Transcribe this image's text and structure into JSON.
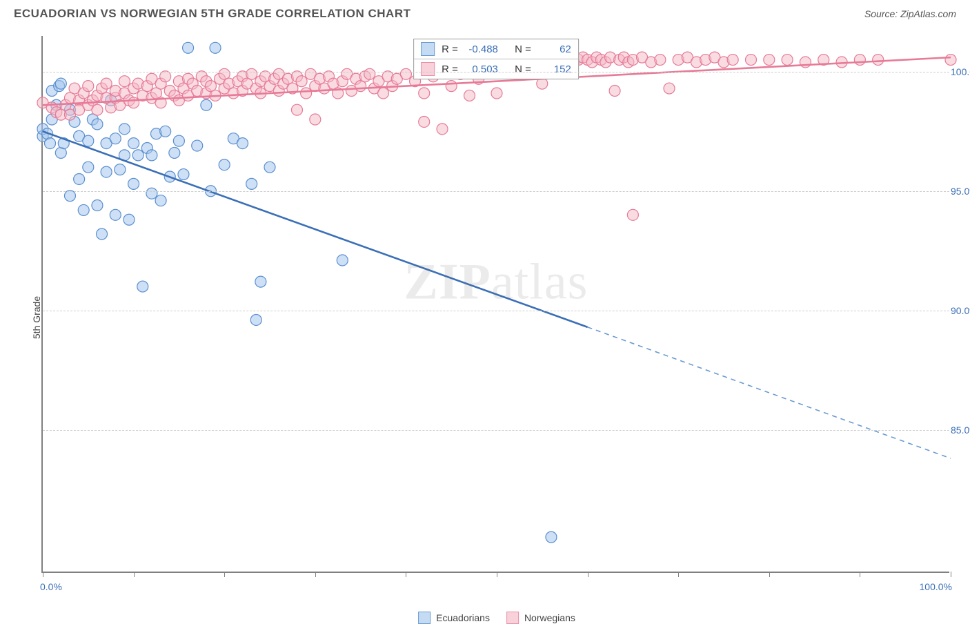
{
  "header": {
    "title": "ECUADORIAN VS NORWEGIAN 5TH GRADE CORRELATION CHART",
    "source_prefix": "Source: ",
    "source_name": "ZipAtlas.com"
  },
  "watermark": {
    "zip": "ZIP",
    "atlas": "atlas"
  },
  "chart": {
    "type": "scatter",
    "background_color": "#ffffff",
    "grid_color": "#cccccc",
    "axis_color": "#808080",
    "tick_label_color": "#3b6fb6",
    "ylabel": "5th Grade",
    "ylabel_fontsize": 14,
    "xlim": [
      0,
      100
    ],
    "ylim": [
      79,
      101.5
    ],
    "yticks": [
      85,
      90,
      95,
      100
    ],
    "ytick_labels": [
      "85.0%",
      "90.0%",
      "95.0%",
      "100.0%"
    ],
    "xticks": [
      0,
      10,
      20,
      30,
      40,
      50,
      60,
      70,
      80,
      90,
      100
    ],
    "xaxis_end_labels": {
      "left": "0.0%",
      "right": "100.0%"
    },
    "marker_radius": 8,
    "marker_stroke_width": 1.2,
    "trend_line_width": 2.6,
    "series": [
      {
        "name": "Ecuadorians",
        "fill_color": "#a6c7ec",
        "stroke_color": "#5a8fd0",
        "fill_opacity": 0.55,
        "legend_fill": "#c5dbf3",
        "legend_border": "#6a9ad2",
        "trend": {
          "solid_from": [
            0,
            97.5
          ],
          "solid_to": [
            60,
            89.3
          ],
          "dash_to": [
            100,
            83.8
          ],
          "color": "#3b6fb6",
          "dash_color": "#6a9ad2"
        },
        "points": [
          [
            0,
            97.3
          ],
          [
            0,
            97.6
          ],
          [
            0.5,
            97.4
          ],
          [
            0.8,
            97.0
          ],
          [
            1,
            98.0
          ],
          [
            1,
            99.2
          ],
          [
            1.5,
            98.6
          ],
          [
            1.8,
            99.4
          ],
          [
            2,
            96.6
          ],
          [
            2,
            99.5
          ],
          [
            2.3,
            97.0
          ],
          [
            3,
            98.4
          ],
          [
            3,
            94.8
          ],
          [
            3.5,
            97.9
          ],
          [
            4,
            97.3
          ],
          [
            4,
            95.5
          ],
          [
            4.5,
            94.2
          ],
          [
            5,
            97.1
          ],
          [
            5,
            96.0
          ],
          [
            5.5,
            98.0
          ],
          [
            6,
            94.4
          ],
          [
            6,
            97.8
          ],
          [
            6.5,
            93.2
          ],
          [
            7,
            97.0
          ],
          [
            7,
            95.8
          ],
          [
            7.5,
            98.8
          ],
          [
            8,
            97.2
          ],
          [
            8,
            94.0
          ],
          [
            8.5,
            95.9
          ],
          [
            9,
            96.5
          ],
          [
            9,
            97.6
          ],
          [
            9.5,
            93.8
          ],
          [
            10,
            97.0
          ],
          [
            10,
            95.3
          ],
          [
            10.5,
            96.5
          ],
          [
            11,
            91.0
          ],
          [
            11.5,
            96.8
          ],
          [
            12,
            96.5
          ],
          [
            12,
            94.9
          ],
          [
            12.5,
            97.4
          ],
          [
            13,
            94.6
          ],
          [
            13.5,
            97.5
          ],
          [
            14,
            95.6
          ],
          [
            14.5,
            96.6
          ],
          [
            15,
            97.1
          ],
          [
            15.5,
            95.7
          ],
          [
            16,
            101.0
          ],
          [
            17,
            96.9
          ],
          [
            18,
            98.6
          ],
          [
            18.5,
            95.0
          ],
          [
            19,
            101.0
          ],
          [
            20,
            96.1
          ],
          [
            21,
            97.2
          ],
          [
            22,
            97.0
          ],
          [
            23,
            95.3
          ],
          [
            23.5,
            89.6
          ],
          [
            24,
            91.2
          ],
          [
            25,
            96.0
          ],
          [
            33,
            92.1
          ],
          [
            56,
            80.5
          ]
        ]
      },
      {
        "name": "Norwegians",
        "fill_color": "#f4b8c6",
        "stroke_color": "#e77a97",
        "fill_opacity": 0.5,
        "legend_fill": "#f8d1db",
        "legend_border": "#e98fa8",
        "trend": {
          "solid_from": [
            0,
            98.6
          ],
          "solid_to": [
            100,
            100.6
          ],
          "dash_to": null,
          "color": "#e77a97",
          "dash_color": "#e77a97"
        },
        "points": [
          [
            0,
            98.7
          ],
          [
            1,
            98.5
          ],
          [
            1.5,
            98.3
          ],
          [
            2,
            98.2
          ],
          [
            2.5,
            98.6
          ],
          [
            3,
            98.9
          ],
          [
            3,
            98.2
          ],
          [
            3.5,
            99.3
          ],
          [
            4,
            98.8
          ],
          [
            4,
            98.4
          ],
          [
            4.5,
            99.1
          ],
          [
            5,
            98.6
          ],
          [
            5,
            99.4
          ],
          [
            5.5,
            98.8
          ],
          [
            6,
            99.0
          ],
          [
            6,
            98.4
          ],
          [
            6.5,
            99.3
          ],
          [
            7,
            98.9
          ],
          [
            7,
            99.5
          ],
          [
            7.5,
            98.5
          ],
          [
            8,
            98.9
          ],
          [
            8,
            99.2
          ],
          [
            8.5,
            98.6
          ],
          [
            9,
            99.1
          ],
          [
            9,
            99.6
          ],
          [
            9.5,
            98.8
          ],
          [
            10,
            99.3
          ],
          [
            10,
            98.7
          ],
          [
            10.5,
            99.5
          ],
          [
            11,
            99.0
          ],
          [
            11.5,
            99.4
          ],
          [
            12,
            98.9
          ],
          [
            12,
            99.7
          ],
          [
            12.5,
            99.1
          ],
          [
            13,
            99.5
          ],
          [
            13,
            98.7
          ],
          [
            13.5,
            99.8
          ],
          [
            14,
            99.2
          ],
          [
            14.5,
            99.0
          ],
          [
            15,
            99.6
          ],
          [
            15,
            98.8
          ],
          [
            15.5,
            99.3
          ],
          [
            16,
            99.7
          ],
          [
            16,
            99.0
          ],
          [
            16.5,
            99.5
          ],
          [
            17,
            99.2
          ],
          [
            17.5,
            99.8
          ],
          [
            18,
            99.1
          ],
          [
            18,
            99.6
          ],
          [
            18.5,
            99.4
          ],
          [
            19,
            99.0
          ],
          [
            19.5,
            99.7
          ],
          [
            20,
            99.3
          ],
          [
            20,
            99.9
          ],
          [
            20.5,
            99.5
          ],
          [
            21,
            99.1
          ],
          [
            21.5,
            99.6
          ],
          [
            22,
            99.8
          ],
          [
            22,
            99.2
          ],
          [
            22.5,
            99.5
          ],
          [
            23,
            99.9
          ],
          [
            23.5,
            99.3
          ],
          [
            24,
            99.6
          ],
          [
            24,
            99.1
          ],
          [
            24.5,
            99.8
          ],
          [
            25,
            99.4
          ],
          [
            25.5,
            99.7
          ],
          [
            26,
            99.2
          ],
          [
            26,
            99.9
          ],
          [
            26.5,
            99.5
          ],
          [
            27,
            99.7
          ],
          [
            27.5,
            99.3
          ],
          [
            28,
            99.8
          ],
          [
            28,
            98.4
          ],
          [
            28.5,
            99.6
          ],
          [
            29,
            99.1
          ],
          [
            29.5,
            99.9
          ],
          [
            30,
            99.4
          ],
          [
            30,
            98.0
          ],
          [
            30.5,
            99.7
          ],
          [
            31,
            99.3
          ],
          [
            31.5,
            99.8
          ],
          [
            32,
            99.5
          ],
          [
            32.5,
            99.1
          ],
          [
            33,
            99.6
          ],
          [
            33.5,
            99.9
          ],
          [
            34,
            99.2
          ],
          [
            34.5,
            99.7
          ],
          [
            35,
            99.4
          ],
          [
            35.5,
            99.8
          ],
          [
            36,
            99.9
          ],
          [
            36.5,
            99.3
          ],
          [
            37,
            99.6
          ],
          [
            37.5,
            99.1
          ],
          [
            38,
            99.8
          ],
          [
            38.5,
            99.4
          ],
          [
            39,
            99.7
          ],
          [
            40,
            99.9
          ],
          [
            41,
            99.6
          ],
          [
            42,
            99.1
          ],
          [
            42,
            97.9
          ],
          [
            43,
            99.8
          ],
          [
            44,
            97.6
          ],
          [
            45,
            99.4
          ],
          [
            46,
            99.9
          ],
          [
            47,
            99.0
          ],
          [
            48,
            99.7
          ],
          [
            50,
            99.1
          ],
          [
            52,
            100.4
          ],
          [
            54,
            100.6
          ],
          [
            55,
            99.5
          ],
          [
            56,
            100.5
          ],
          [
            57,
            100.6
          ],
          [
            57.5,
            100.5
          ],
          [
            58,
            100.6
          ],
          [
            58.5,
            100.4
          ],
          [
            59,
            100.5
          ],
          [
            59.5,
            100.6
          ],
          [
            60,
            100.5
          ],
          [
            60.5,
            100.4
          ],
          [
            61,
            100.6
          ],
          [
            61.5,
            100.5
          ],
          [
            62,
            100.4
          ],
          [
            62.5,
            100.6
          ],
          [
            63,
            99.2
          ],
          [
            63.5,
            100.5
          ],
          [
            64,
            100.6
          ],
          [
            64.5,
            100.4
          ],
          [
            65,
            100.5
          ],
          [
            66,
            100.6
          ],
          [
            67,
            100.4
          ],
          [
            68,
            100.5
          ],
          [
            69,
            99.3
          ],
          [
            70,
            100.5
          ],
          [
            71,
            100.6
          ],
          [
            72,
            100.4
          ],
          [
            73,
            100.5
          ],
          [
            74,
            100.6
          ],
          [
            75,
            100.4
          ],
          [
            76,
            100.5
          ],
          [
            78,
            100.5
          ],
          [
            80,
            100.5
          ],
          [
            82,
            100.5
          ],
          [
            84,
            100.4
          ],
          [
            86,
            100.5
          ],
          [
            88,
            100.4
          ],
          [
            90,
            100.5
          ],
          [
            92,
            100.5
          ],
          [
            65,
            94.0
          ],
          [
            100,
            100.5
          ]
        ]
      }
    ],
    "stats": [
      {
        "swatch_fill": "#c5dbf3",
        "swatch_border": "#6a9ad2",
        "r_label": "R =",
        "r": "-0.488",
        "n_label": "N =",
        "n": "62"
      },
      {
        "swatch_fill": "#f8d1db",
        "swatch_border": "#e98fa8",
        "r_label": "R =",
        "r": "0.503",
        "n_label": "N =",
        "n": "152"
      }
    ],
    "legend": {
      "label_a": "Ecuadorians",
      "label_b": "Norwegians"
    }
  }
}
